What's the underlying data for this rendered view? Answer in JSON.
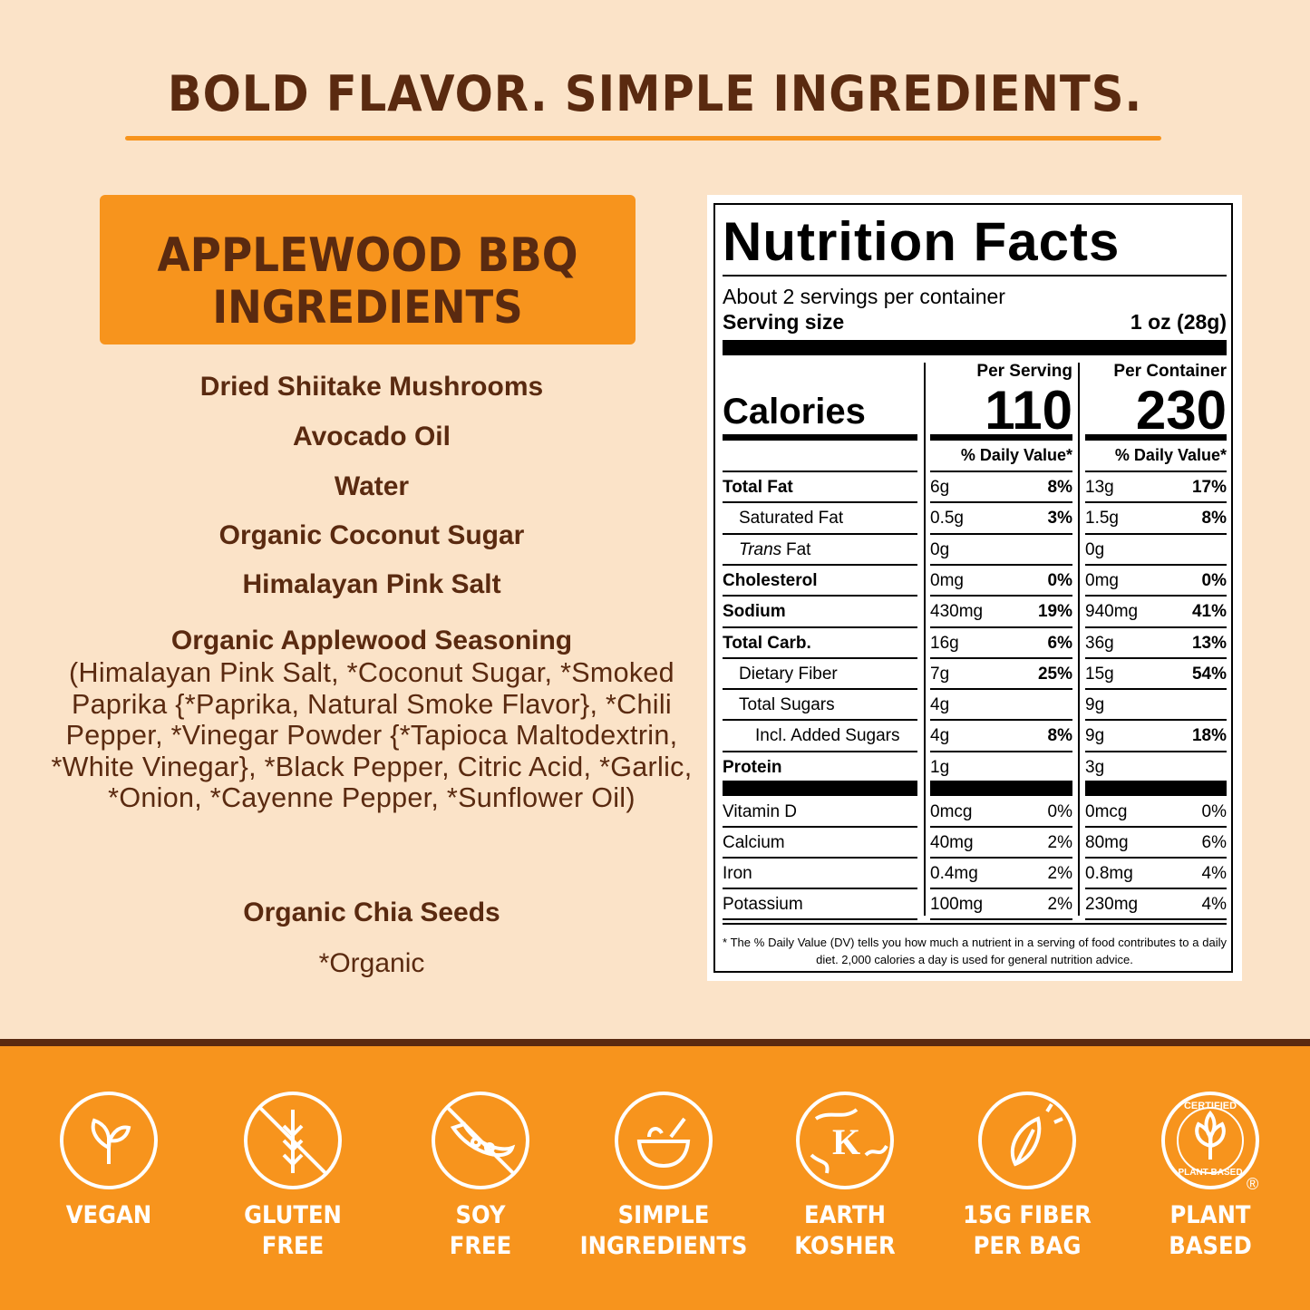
{
  "header": {
    "title": "BOLD FLAVOR. SIMPLE INGREDIENTS."
  },
  "ingredients": {
    "heading": [
      "APPLEWOOD BBQ",
      "INGREDIENTS"
    ],
    "items": [
      {
        "name": "Dried Shiitake Mushrooms"
      },
      {
        "name": "Avocado Oil"
      },
      {
        "name": "Water"
      },
      {
        "name": "Organic Coconut Sugar"
      },
      {
        "name": "Himalayan Pink Salt"
      },
      {
        "name": "Organic Applewood Seasoning",
        "detail": "(Himalayan Pink Salt, *Coconut Sugar, *Smoked Paprika {*Paprika, Natural Smoke Flavor}, *Chili Pepper, *Vinegar Powder {*Tapioca Maltodextrin, *White Vinegar}, *Black Pepper, Citric Acid, *Garlic, *Onion, *Cayenne Pepper, *Sunflower Oil)"
      },
      {
        "name": "Organic Chia Seeds"
      }
    ],
    "footnote": "*Organic"
  },
  "nutrition": {
    "title": "Nutrition Facts",
    "servings": "About 2 servings per container",
    "serving_size_label": "Serving size",
    "serving_size": "1 oz (28g)",
    "columns": [
      "Per Serving",
      "Per Container"
    ],
    "calories_label": "Calories",
    "calories": [
      110,
      230
    ],
    "dv_header": "% Daily Value*",
    "rows": [
      {
        "label": "Total Fat",
        "values": [
          [
            "6g",
            "8%"
          ],
          [
            "13g",
            "17%"
          ]
        ]
      },
      {
        "label": "Saturated Fat",
        "values": [
          [
            "0.5g",
            "3%"
          ],
          [
            "1.5g",
            "8%"
          ]
        ]
      },
      {
        "label": [
          "Trans",
          "Fat"
        ],
        "values": [
          [
            "0g",
            null
          ],
          [
            "0g",
            null
          ]
        ]
      },
      {
        "label": "Cholesterol",
        "values": [
          [
            "0mg",
            "0%"
          ],
          [
            "0mg",
            "0%"
          ]
        ]
      },
      {
        "label": "Sodium",
        "values": [
          [
            "430mg",
            "19%"
          ],
          [
            "940mg",
            "41%"
          ]
        ]
      },
      {
        "label": "Total Carb.",
        "values": [
          [
            "16g",
            "6%"
          ],
          [
            "36g",
            "13%"
          ]
        ]
      },
      {
        "label": "Dietary Fiber",
        "values": [
          [
            "7g",
            "25%"
          ],
          [
            "15g",
            "54%"
          ]
        ]
      },
      {
        "label": "Total Sugars",
        "values": [
          [
            "4g",
            null
          ],
          [
            "9g",
            null
          ]
        ]
      },
      {
        "label": "Incl. Added Sugars",
        "values": [
          [
            "4g",
            "8%"
          ],
          [
            "9g",
            "18%"
          ]
        ]
      },
      {
        "label": "Protein",
        "values": [
          [
            "1g",
            null
          ],
          [
            "3g",
            null
          ]
        ]
      }
    ],
    "micronutrients": [
      {
        "label": "Vitamin D",
        "values": [
          [
            "0mcg",
            "0%"
          ],
          [
            "0mcg",
            "0%"
          ]
        ]
      },
      {
        "label": "Calcium",
        "values": [
          [
            "40mg",
            "2%"
          ],
          [
            "80mg",
            "6%"
          ]
        ]
      },
      {
        "label": "Iron",
        "values": [
          [
            "0.4mg",
            "2%"
          ],
          [
            "0.8mg",
            "4%"
          ]
        ]
      },
      {
        "label": "Potassium",
        "values": [
          [
            "100mg",
            "2%"
          ],
          [
            "230mg",
            "4%"
          ]
        ]
      }
    ],
    "footnote": "* The % Daily Value (DV) tells you how much a nutrient in a serving of food contributes to a daily diet. 2,000 calories a day is used for general nutrition advice."
  },
  "badges": [
    {
      "lines": [
        "VEGAN"
      ]
    },
    {
      "lines": [
        "GLUTEN",
        "FREE"
      ]
    },
    {
      "lines": [
        "SOY",
        "FREE"
      ]
    },
    {
      "lines": [
        "SIMPLE",
        "INGREDIENTS"
      ]
    },
    {
      "lines": [
        "EARTH",
        "KOSHER"
      ],
      "mark": "K"
    },
    {
      "lines": [
        "15G FIBER",
        "PER BAG"
      ]
    },
    {
      "lines": [
        "PLANT",
        "BASED"
      ],
      "seal": [
        "CERTIFIED",
        "PLANT BASED"
      ],
      "mark": "®"
    }
  ]
}
